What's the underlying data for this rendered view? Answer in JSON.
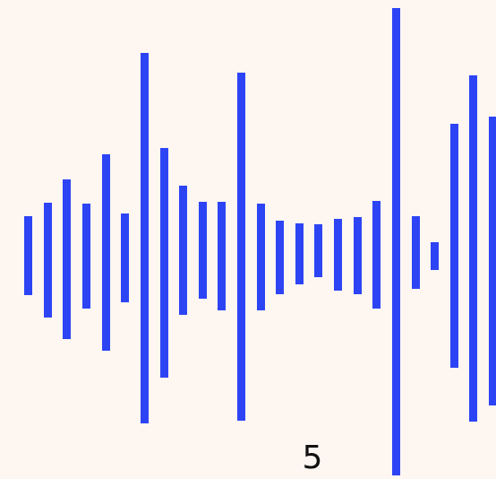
{
  "number_label": "5",
  "colors": {
    "background": "#FEF6F1",
    "bar": "#2D44F5",
    "text": "#111111"
  },
  "waveform": {
    "bar_count": 25
  }
}
